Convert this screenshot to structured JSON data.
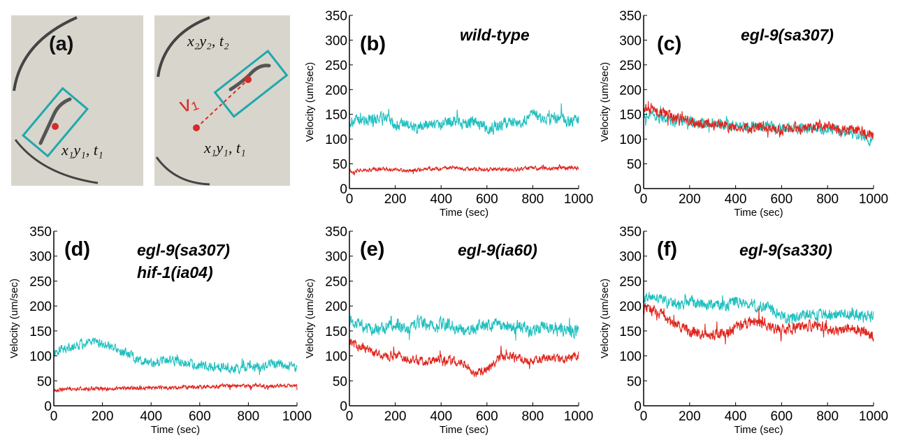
{
  "panel_a": {
    "letter": "(a)",
    "left_label": "x₁y₁, t₁",
    "right_top_label": "x₂y₂, t₂",
    "right_bottom_label": "x₁y₁, t₁",
    "velocity_label": "v₁",
    "colors": {
      "box": "#1ea8ad",
      "marker": "#d62b2b",
      "background": "#d8d5cc"
    }
  },
  "colors": {
    "cyan": "#1fbfbf",
    "red": "#e0241c"
  },
  "chart_data": [
    {
      "type": "line",
      "panel": "(b)",
      "title_lines": [
        "wild-type"
      ],
      "xlabel": "Time (sec)",
      "ylabel": "Velocity (um/sec)",
      "xlim": [
        0,
        1000
      ],
      "ylim": [
        0,
        350
      ],
      "xticks": [
        0,
        200,
        400,
        600,
        800,
        1000
      ],
      "yticks": [
        0,
        50,
        100,
        150,
        200,
        250,
        300,
        350
      ],
      "grid": false,
      "series": [
        {
          "color": "#1fbfbf",
          "x": [
            0,
            50,
            100,
            150,
            200,
            250,
            300,
            350,
            400,
            450,
            500,
            550,
            600,
            650,
            700,
            750,
            800,
            850,
            900,
            950,
            1000
          ],
          "y": [
            135,
            138,
            140,
            145,
            128,
            130,
            120,
            132,
            128,
            140,
            130,
            135,
            120,
            125,
            138,
            130,
            150,
            140,
            145,
            135,
            140
          ],
          "noise": 16
        },
        {
          "color": "#e0241c",
          "x": [
            0,
            50,
            100,
            150,
            200,
            250,
            300,
            350,
            400,
            450,
            500,
            550,
            600,
            650,
            700,
            750,
            800,
            850,
            900,
            950,
            1000
          ],
          "y": [
            35,
            38,
            38,
            40,
            38,
            36,
            38,
            40,
            40,
            42,
            40,
            40,
            38,
            40,
            38,
            40,
            42,
            40,
            40,
            42,
            42
          ],
          "noise": 5
        }
      ]
    },
    {
      "type": "line",
      "panel": "(c)",
      "title_lines": [
        "egl-9(sa307)"
      ],
      "xlabel": "Time (sec)",
      "ylabel": "Velocity (um/sec)",
      "xlim": [
        0,
        1000
      ],
      "ylim": [
        0,
        350
      ],
      "xticks": [
        0,
        200,
        400,
        600,
        800,
        1000
      ],
      "yticks": [
        0,
        50,
        100,
        150,
        200,
        250,
        300,
        350
      ],
      "grid": false,
      "series": [
        {
          "color": "#1fbfbf",
          "x": [
            0,
            50,
            100,
            150,
            200,
            250,
            300,
            350,
            400,
            450,
            500,
            550,
            600,
            650,
            700,
            750,
            800,
            850,
            900,
            950,
            1000
          ],
          "y": [
            150,
            145,
            140,
            138,
            135,
            132,
            130,
            128,
            128,
            125,
            125,
            125,
            122,
            122,
            122,
            120,
            118,
            118,
            112,
            105,
            95
          ],
          "noise": 14
        },
        {
          "color": "#e0241c",
          "x": [
            0,
            50,
            100,
            150,
            200,
            250,
            300,
            350,
            400,
            450,
            500,
            550,
            600,
            650,
            700,
            750,
            800,
            850,
            900,
            950,
            1000
          ],
          "y": [
            165,
            160,
            150,
            140,
            135,
            130,
            128,
            125,
            125,
            122,
            125,
            122,
            118,
            122,
            122,
            125,
            125,
            120,
            118,
            115,
            110
          ],
          "noise": 15
        }
      ]
    },
    {
      "type": "line",
      "panel": "(d)",
      "title_lines": [
        "egl-9(sa307)",
        "hif-1(ia04)"
      ],
      "xlabel": "Time (sec)",
      "ylabel": "Velocity (um/sec)",
      "xlim": [
        0,
        1000
      ],
      "ylim": [
        0,
        350
      ],
      "xticks": [
        0,
        200,
        400,
        600,
        800,
        1000
      ],
      "yticks": [
        0,
        50,
        100,
        150,
        200,
        250,
        300,
        350
      ],
      "grid": false,
      "series": [
        {
          "color": "#1fbfbf",
          "x": [
            0,
            50,
            100,
            150,
            200,
            250,
            300,
            350,
            400,
            450,
            500,
            550,
            600,
            650,
            700,
            750,
            800,
            850,
            900,
            950,
            1000
          ],
          "y": [
            110,
            115,
            120,
            130,
            125,
            115,
            105,
            90,
            85,
            90,
            90,
            85,
            80,
            80,
            78,
            75,
            80,
            78,
            85,
            82,
            75
          ],
          "noise": 13
        },
        {
          "color": "#e0241c",
          "x": [
            0,
            50,
            100,
            150,
            200,
            250,
            300,
            350,
            400,
            450,
            500,
            550,
            600,
            650,
            700,
            750,
            800,
            850,
            900,
            950,
            1000
          ],
          "y": [
            32,
            34,
            34,
            35,
            34,
            34,
            35,
            36,
            36,
            36,
            36,
            38,
            38,
            38,
            40,
            40,
            40,
            40,
            40,
            40,
            40
          ],
          "noise": 5
        }
      ]
    },
    {
      "type": "line",
      "panel": "(e)",
      "title_lines": [
        "egl-9(ia60)"
      ],
      "xlabel": "Time (sec)",
      "ylabel": "Velocity (um/sec)",
      "xlim": [
        0,
        1000
      ],
      "ylim": [
        0,
        350
      ],
      "xticks": [
        0,
        200,
        400,
        600,
        800,
        1000
      ],
      "yticks": [
        0,
        50,
        100,
        150,
        200,
        250,
        300,
        350
      ],
      "grid": false,
      "series": [
        {
          "color": "#1fbfbf",
          "x": [
            0,
            50,
            100,
            150,
            200,
            250,
            300,
            350,
            400,
            450,
            500,
            550,
            600,
            650,
            700,
            750,
            800,
            850,
            900,
            950,
            1000
          ],
          "y": [
            170,
            160,
            150,
            155,
            165,
            150,
            170,
            160,
            165,
            160,
            150,
            155,
            160,
            165,
            155,
            160,
            150,
            160,
            155,
            150,
            150
          ],
          "noise": 17
        },
        {
          "color": "#e0241c",
          "x": [
            0,
            50,
            100,
            150,
            200,
            250,
            300,
            350,
            400,
            450,
            500,
            550,
            600,
            650,
            700,
            750,
            800,
            850,
            900,
            950,
            1000
          ],
          "y": [
            125,
            120,
            110,
            100,
            100,
            95,
            90,
            90,
            95,
            90,
            85,
            65,
            70,
            95,
            100,
            95,
            90,
            95,
            95,
            95,
            100
          ],
          "noise": 12
        }
      ]
    },
    {
      "type": "line",
      "panel": "(f)",
      "title_lines": [
        "egl-9(sa330)"
      ],
      "xlabel": "Time (sec)",
      "ylabel": "Velocity (um/sec)",
      "xlim": [
        0,
        1000
      ],
      "ylim": [
        0,
        350
      ],
      "xticks": [
        0,
        200,
        400,
        600,
        800,
        1000
      ],
      "yticks": [
        0,
        50,
        100,
        150,
        200,
        250,
        300,
        350
      ],
      "grid": false,
      "series": [
        {
          "color": "#1fbfbf",
          "x": [
            0,
            50,
            100,
            150,
            200,
            250,
            300,
            350,
            400,
            450,
            500,
            550,
            600,
            650,
            700,
            750,
            800,
            850,
            900,
            950,
            1000
          ],
          "y": [
            215,
            220,
            210,
            200,
            210,
            205,
            200,
            200,
            210,
            205,
            200,
            195,
            180,
            175,
            180,
            185,
            185,
            180,
            185,
            180,
            180
          ],
          "noise": 16
        },
        {
          "color": "#e0241c",
          "x": [
            0,
            50,
            100,
            150,
            200,
            250,
            300,
            350,
            400,
            450,
            500,
            550,
            600,
            650,
            700,
            750,
            800,
            850,
            900,
            950,
            1000
          ],
          "y": [
            195,
            190,
            175,
            160,
            150,
            145,
            140,
            145,
            155,
            165,
            170,
            160,
            150,
            155,
            160,
            160,
            155,
            150,
            155,
            150,
            140
          ],
          "noise": 15
        }
      ]
    }
  ]
}
